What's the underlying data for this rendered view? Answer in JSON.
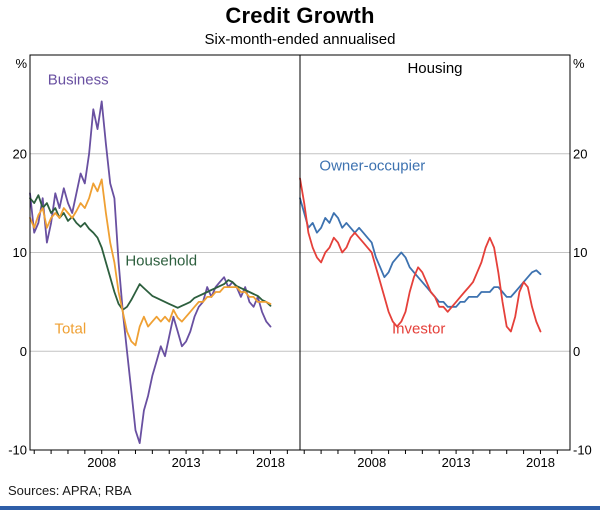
{
  "header": {
    "title": "Credit Growth",
    "subtitle": "Six-month-ended annualised"
  },
  "footer": {
    "sources": "Sources: APRA; RBA",
    "bar_color": "#2e5ea8"
  },
  "style": {
    "grid_color": "#c4c4c4",
    "frame_color": "#000000",
    "text_color": "#000000"
  },
  "chart_data": [
    {
      "type": "line",
      "panel_title": "",
      "unit": "%",
      "xlim": [
        2003.75,
        2019.75
      ],
      "ylim": [
        -10,
        30
      ],
      "yticks": [
        -10,
        0,
        10,
        20
      ],
      "xticks": [
        2008,
        2013,
        2018
      ],
      "grid": true,
      "legend": "inline-colored-labels",
      "x": [
        2003.75,
        2004,
        2004.25,
        2004.5,
        2004.75,
        2005,
        2005.25,
        2005.5,
        2005.75,
        2006,
        2006.25,
        2006.5,
        2006.75,
        2007,
        2007.25,
        2007.5,
        2007.75,
        2008,
        2008.25,
        2008.5,
        2008.75,
        2009,
        2009.25,
        2009.5,
        2009.75,
        2010,
        2010.25,
        2010.5,
        2010.75,
        2011,
        2011.25,
        2011.5,
        2011.75,
        2012,
        2012.25,
        2012.5,
        2012.75,
        2013,
        2013.25,
        2013.5,
        2013.75,
        2014,
        2014.25,
        2014.5,
        2014.75,
        2015,
        2015.25,
        2015.5,
        2015.75,
        2016,
        2016.25,
        2016.5,
        2016.75,
        2017,
        2017.25,
        2017.5,
        2017.75,
        2018
      ],
      "series": [
        {
          "name": "Business",
          "color": "#6950a1",
          "label_xy": [
            2004.8,
            27.0
          ],
          "values": [
            16,
            12,
            13,
            15.5,
            11,
            13,
            16,
            14.5,
            16.5,
            15,
            14,
            16,
            18,
            17,
            20,
            24.5,
            22.5,
            25.3,
            21,
            17,
            15.5,
            9,
            4,
            0,
            -4,
            -8,
            -9.3,
            -6,
            -4.5,
            -2.5,
            -1,
            0.5,
            -0.5,
            1.5,
            3.5,
            2,
            0.5,
            1,
            2,
            3.5,
            4.5,
            5,
            6.5,
            5.5,
            6.5,
            7,
            7.5,
            6.5,
            7,
            6.5,
            5.5,
            6.5,
            5,
            4.5,
            5.5,
            4,
            3,
            2.5
          ]
        },
        {
          "name": "Household",
          "color": "#2d5f3e",
          "label_xy": [
            2009.4,
            8.7
          ],
          "values": [
            15.5,
            15,
            15.8,
            14.5,
            15,
            14,
            14.5,
            13.5,
            14,
            13.2,
            13.6,
            13,
            12.6,
            13,
            12.4,
            12,
            11.5,
            10.5,
            9,
            7.5,
            6,
            4.8,
            4.2,
            4.5,
            5.2,
            6,
            6.8,
            6.4,
            6,
            5.6,
            5.4,
            5.2,
            5,
            4.8,
            4.6,
            4.4,
            4.6,
            4.8,
            5,
            5.4,
            5.6,
            5.8,
            6,
            6.2,
            6.4,
            6.6,
            6.8,
            7.2,
            7,
            6.6,
            6.4,
            6.2,
            6,
            5.8,
            5.6,
            5.2,
            5,
            4.6
          ]
        },
        {
          "name": "Total",
          "color": "#efa033",
          "label_xy": [
            2005.2,
            1.8
          ],
          "values": [
            13.5,
            12.5,
            13.8,
            14.5,
            12.5,
            13.5,
            14,
            13.5,
            14.5,
            14,
            13.5,
            14.2,
            15,
            14.5,
            15.5,
            17,
            16.2,
            17.4,
            14,
            11,
            9,
            6,
            4,
            2,
            1,
            0.6,
            2.5,
            3.5,
            2.5,
            3,
            3.5,
            3,
            3.5,
            3,
            4.2,
            3.4,
            3,
            3.5,
            4,
            4.5,
            5,
            5,
            5.5,
            5.5,
            6,
            6,
            6.5,
            6.5,
            6.5,
            6.5,
            6,
            6,
            5.5,
            5.5,
            5,
            5,
            5,
            4.8
          ]
        }
      ]
    },
    {
      "type": "line",
      "panel_title": "Housing",
      "unit": "%",
      "xlim": [
        2003.75,
        2019.75
      ],
      "ylim": [
        -10,
        30
      ],
      "yticks": [
        -10,
        0,
        10,
        20
      ],
      "xticks": [
        2008,
        2013,
        2018
      ],
      "grid": true,
      "legend": "inline-colored-labels",
      "x": [
        2003.75,
        2004,
        2004.25,
        2004.5,
        2004.75,
        2005,
        2005.25,
        2005.5,
        2005.75,
        2006,
        2006.25,
        2006.5,
        2006.75,
        2007,
        2007.25,
        2007.5,
        2007.75,
        2008,
        2008.25,
        2008.5,
        2008.75,
        2009,
        2009.25,
        2009.5,
        2009.75,
        2010,
        2010.25,
        2010.5,
        2010.75,
        2011,
        2011.25,
        2011.5,
        2011.75,
        2012,
        2012.25,
        2012.5,
        2012.75,
        2013,
        2013.25,
        2013.5,
        2013.75,
        2014,
        2014.25,
        2014.5,
        2014.75,
        2015,
        2015.25,
        2015.5,
        2015.75,
        2016,
        2016.25,
        2016.5,
        2016.75,
        2017,
        2017.25,
        2017.5,
        2017.75,
        2018
      ],
      "series": [
        {
          "name": "Owner-occupier",
          "color": "#3d72b0",
          "label_xy": [
            2004.9,
            18.3
          ],
          "values": [
            15.5,
            14,
            12.5,
            13,
            12,
            12.5,
            13.5,
            13,
            14,
            13.5,
            12.5,
            13,
            12.5,
            12,
            12.5,
            12,
            11.5,
            11,
            9.5,
            8.5,
            7.5,
            8,
            9,
            9.5,
            10,
            9.5,
            8.5,
            8,
            7.5,
            7,
            6.5,
            6,
            5.5,
            5,
            5,
            4.5,
            4.5,
            4.5,
            5,
            5,
            5.5,
            5.5,
            5.5,
            6,
            6,
            6,
            6.5,
            6.5,
            6,
            5.5,
            5.5,
            6,
            6.5,
            7,
            7.5,
            8,
            8.2,
            7.8
          ]
        },
        {
          "name": "Investor",
          "color": "#e5403a",
          "label_xy": [
            2009.2,
            1.8
          ],
          "values": [
            17.5,
            15,
            12,
            10.5,
            9.5,
            9,
            10,
            10.5,
            11.5,
            11,
            10,
            10.5,
            11.5,
            12,
            11.5,
            11,
            10.5,
            10,
            8.5,
            7,
            5.5,
            4,
            3,
            2.5,
            3,
            4,
            6,
            7.5,
            8.5,
            8,
            7,
            6,
            5.5,
            4.5,
            4.5,
            4,
            4.5,
            5,
            5.5,
            6,
            6.5,
            7,
            8,
            9,
            10.5,
            11.5,
            10.5,
            8,
            5,
            2.5,
            2,
            3.5,
            6,
            7,
            6.5,
            4.5,
            3,
            2
          ]
        }
      ]
    }
  ]
}
